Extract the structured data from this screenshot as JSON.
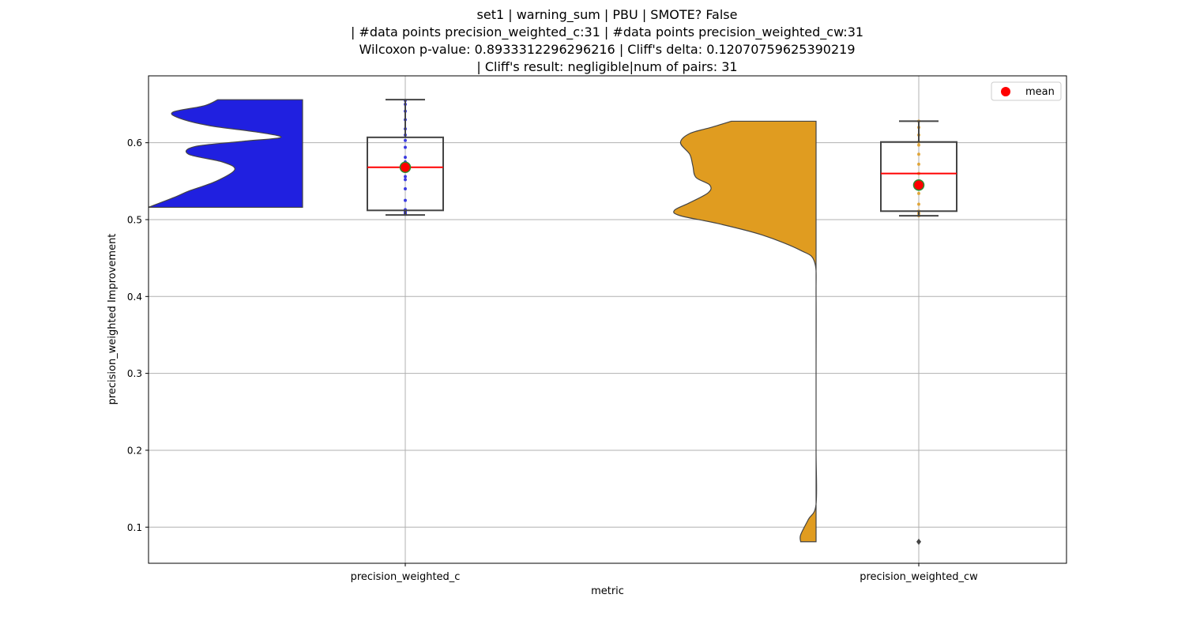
{
  "chart_data": {
    "type": "violin+box",
    "title_lines": [
      "set1 | warning_sum | PBU | SMOTE? False",
      "| #data points precision_weighted_c:31 | #data points precision_weighted_cw:31",
      "Wilcoxon p-value: 0.8933312296296216 | Cliff's delta: 0.12070759625390219",
      "| Cliff's result: negligible|num of pairs: 31"
    ],
    "xlabel": "metric",
    "ylabel": "precision_weighted Improvement",
    "ylim": [
      0.053,
      0.687
    ],
    "yticks": [
      0.1,
      0.2,
      0.3,
      0.4,
      0.5,
      0.6
    ],
    "ytick_labels": [
      "0.1",
      "0.2",
      "0.3",
      "0.4",
      "0.5",
      "0.6"
    ],
    "grid": true,
    "legend": {
      "placement": "top-right",
      "label": "mean",
      "color": "#ff0000"
    },
    "categories": [
      "precision_weighted_c",
      "precision_weighted_cw"
    ],
    "series": [
      {
        "category": "precision_weighted_c",
        "color": "#2020e0",
        "box": {
          "whisker_low": 0.506,
          "q1": 0.512,
          "median": 0.568,
          "q3": 0.607,
          "whisker_high": 0.656
        },
        "mean": 0.568,
        "outliers": [],
        "points": [
          0.507,
          0.509,
          0.511,
          0.513,
          0.525,
          0.54,
          0.552,
          0.556,
          0.568,
          0.575,
          0.581,
          0.594,
          0.603,
          0.61,
          0.618,
          0.63,
          0.641,
          0.65,
          0.655
        ],
        "violin": {
          "y": [
            0.516,
            0.53,
            0.537,
            0.55,
            0.565,
            0.575,
            0.585,
            0.595,
            0.602,
            0.607,
            0.614,
            0.622,
            0.632,
            0.64,
            0.648,
            0.656
          ],
          "density": [
            1.0,
            0.82,
            0.74,
            0.56,
            0.44,
            0.52,
            0.74,
            0.7,
            0.38,
            0.14,
            0.3,
            0.6,
            0.8,
            0.84,
            0.64,
            0.55
          ]
        }
      },
      {
        "category": "precision_weighted_cw",
        "color": "#e09c20",
        "box": {
          "whisker_low": 0.505,
          "q1": 0.511,
          "median": 0.56,
          "q3": 0.601,
          "whisker_high": 0.628
        },
        "mean": 0.545,
        "outliers": [
          0.081
        ],
        "points": [
          0.505,
          0.508,
          0.511,
          0.52,
          0.534,
          0.548,
          0.56,
          0.572,
          0.585,
          0.597,
          0.601,
          0.61,
          0.62,
          0.628
        ],
        "violin": {
          "y": [
            0.081,
            0.09,
            0.11,
            0.13,
            0.2,
            0.3,
            0.4,
            0.445,
            0.46,
            0.48,
            0.495,
            0.505,
            0.512,
            0.522,
            0.535,
            0.545,
            0.555,
            0.57,
            0.585,
            0.6,
            0.612,
            0.62,
            0.628
          ],
          "density": [
            0.1,
            0.1,
            0.05,
            0.0,
            0.0,
            0.0,
            0.0,
            0.01,
            0.1,
            0.35,
            0.64,
            0.88,
            0.92,
            0.82,
            0.7,
            0.69,
            0.78,
            0.8,
            0.82,
            0.88,
            0.82,
            0.68,
            0.55
          ]
        }
      }
    ],
    "colors": {
      "box_edge": "#444444",
      "median": "#ff0000",
      "mean_marker": "#ff0000",
      "mean_edge": "#2e8b2e",
      "outlier": "#444444",
      "grid": "#b0b0b0"
    }
  }
}
